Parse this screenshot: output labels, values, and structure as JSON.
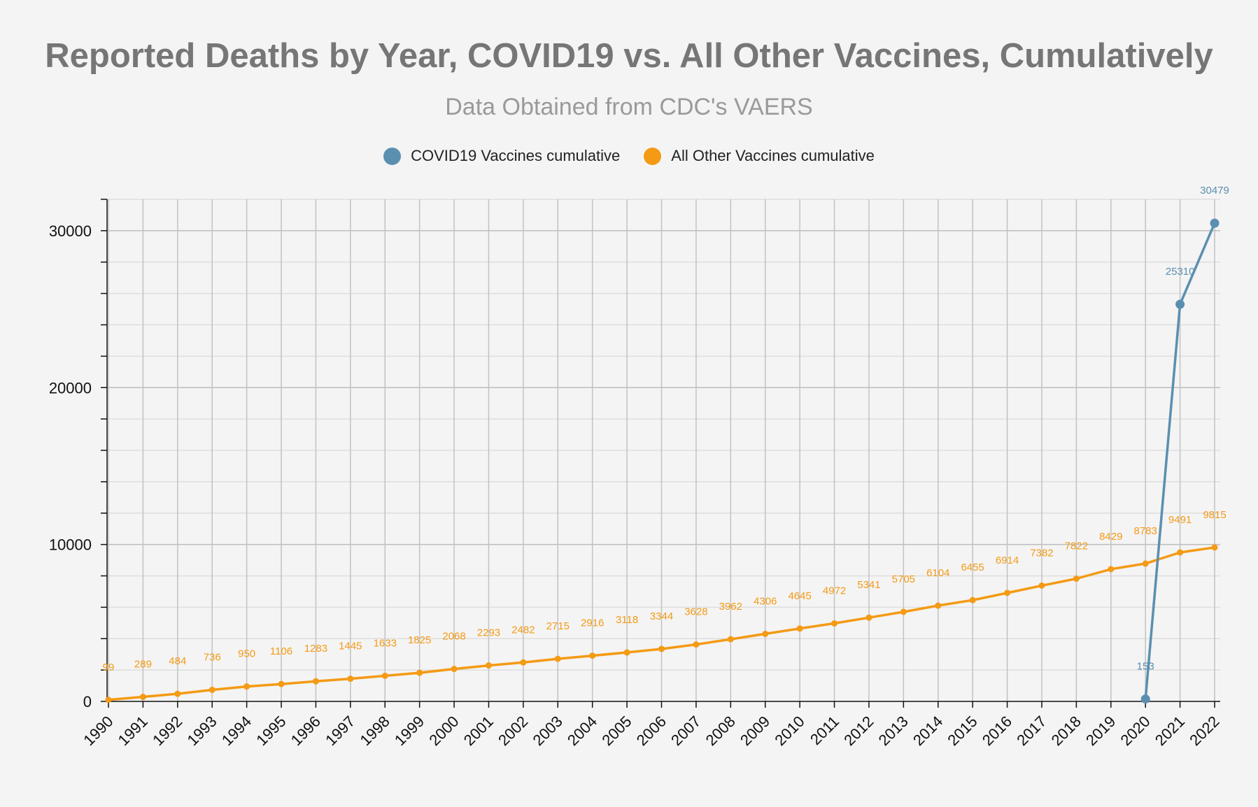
{
  "chart_data": {
    "type": "line",
    "title": "Reported Deaths by Year, COVID19 vs. All Other Vaccines, Cumulatively",
    "subtitle": "Data Obtained from CDC's VAERS",
    "xlabel": "",
    "ylabel": "",
    "x": [
      "1990",
      "1991",
      "1992",
      "1993",
      "1994",
      "1995",
      "1996",
      "1997",
      "1998",
      "1999",
      "2000",
      "2001",
      "2002",
      "2003",
      "2004",
      "2005",
      "2006",
      "2007",
      "2008",
      "2009",
      "2010",
      "2011",
      "2012",
      "2013",
      "2014",
      "2015",
      "2016",
      "2017",
      "2018",
      "2019",
      "2020",
      "2021",
      "2022"
    ],
    "ylim": [
      0,
      32000
    ],
    "y_ticks": [
      0,
      10000,
      20000,
      30000
    ],
    "grid": true,
    "legend_position": "top",
    "series": [
      {
        "name": "COVID19 Vaccines cumulative",
        "color": "#5b8fb0",
        "x": [
          "2020",
          "2021",
          "2022"
        ],
        "values": [
          153,
          25310,
          30479
        ]
      },
      {
        "name": "All Other Vaccines cumulative",
        "color": "#f49a14",
        "x": [
          "1990",
          "1991",
          "1992",
          "1993",
          "1994",
          "1995",
          "1996",
          "1997",
          "1998",
          "1999",
          "2000",
          "2001",
          "2002",
          "2003",
          "2004",
          "2005",
          "2006",
          "2007",
          "2008",
          "2009",
          "2010",
          "2011",
          "2012",
          "2013",
          "2014",
          "2015",
          "2016",
          "2017",
          "2018",
          "2019",
          "2020",
          "2021",
          "2022"
        ],
        "values": [
          99,
          289,
          484,
          736,
          950,
          1106,
          1283,
          1445,
          1633,
          1825,
          2068,
          2293,
          2482,
          2715,
          2916,
          3118,
          3344,
          3628,
          3962,
          4306,
          4645,
          4972,
          5341,
          5705,
          6104,
          6455,
          6914,
          7382,
          7822,
          8429,
          8783,
          9491,
          9815
        ]
      }
    ]
  }
}
